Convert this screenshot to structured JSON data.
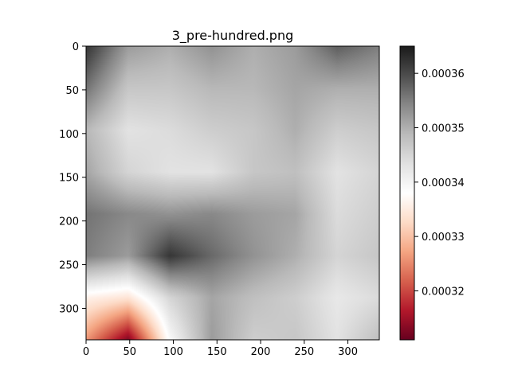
{
  "chart_data": {
    "type": "heatmap",
    "title": "3_pre-hundred.png",
    "xlabel": "",
    "ylabel": "",
    "x_ticks": [
      0,
      50,
      100,
      150,
      200,
      250,
      300
    ],
    "y_ticks": [
      0,
      50,
      100,
      150,
      200,
      250,
      300
    ],
    "xlim": [
      0,
      336
    ],
    "ylim": [
      336,
      0
    ],
    "colorbar": {
      "colormap": "RdGy",
      "vmin": 0.000311,
      "vmax": 0.000365,
      "ticks": [
        "0.00032",
        "0.00033",
        "0.00034",
        "0.00035",
        "0.00036"
      ],
      "tick_values": [
        0.00032,
        0.00033,
        0.00034,
        0.00035,
        0.00036
      ]
    },
    "grid_rows": 8,
    "grid_cols": 8,
    "values": [
      [
        0.000362,
        0.000352,
        0.00035,
        0.000353,
        0.00035,
        0.000352,
        0.000358,
        0.000355
      ],
      [
        0.000356,
        0.000347,
        0.000347,
        0.000349,
        0.000349,
        0.000351,
        0.00035,
        0.00035
      ],
      [
        0.000349,
        0.000343,
        0.000344,
        0.000346,
        0.000347,
        0.00035,
        0.000346,
        0.000347
      ],
      [
        0.000351,
        0.000345,
        0.000343,
        0.000343,
        0.000347,
        0.000348,
        0.000343,
        0.000345
      ],
      [
        0.000356,
        0.000354,
        0.000353,
        0.000354,
        0.000352,
        0.000351,
        0.000344,
        0.000346
      ],
      [
        0.000355,
        0.000352,
        0.000362,
        0.000357,
        0.000353,
        0.00035,
        0.000345,
        0.000347
      ],
      [
        0.000336,
        0.000334,
        0.000345,
        0.000351,
        0.000348,
        0.000346,
        0.000342,
        0.000344
      ],
      [
        0.000326,
        0.000313,
        0.000339,
        0.000352,
        0.000346,
        0.000347,
        0.000343,
        0.000348
      ]
    ]
  }
}
